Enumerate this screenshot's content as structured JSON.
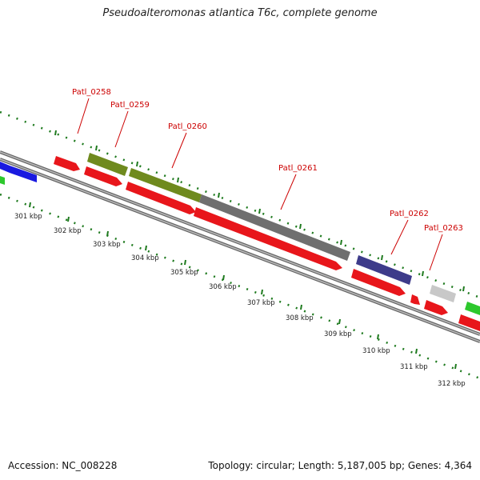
{
  "title": "Pseudoalteromonas atlantica T6c, complete genome",
  "footer": {
    "accession": "Accession: NC_008228",
    "summary": "Topology: circular; Length: 5,187,005 bp; Genes: 4,364"
  },
  "colors": {
    "forward_cds": "#e8161b",
    "label_color": "#cc0000",
    "backbone": "#777777",
    "tick_green": "#1e7a1e"
  },
  "genes": [
    {
      "id": "Patl_0258",
      "label": "Patl_0258"
    },
    {
      "id": "Patl_0259",
      "label": "Patl_0259"
    },
    {
      "id": "Patl_0260",
      "label": "Patl_0260"
    },
    {
      "id": "Patl_0261",
      "label": "Patl_0261"
    },
    {
      "id": "Patl_0262",
      "label": "Patl_0262"
    },
    {
      "id": "Patl_0263",
      "label": "Patl_0263"
    }
  ],
  "kbp_ticks": [
    "301 kbp",
    "302 kbp",
    "303 kbp",
    "304 kbp",
    "305 kbp",
    "306 kbp",
    "307 kbp",
    "308 kbp",
    "309 kbp",
    "310 kbp",
    "311 kbp",
    "312 kbp"
  ]
}
